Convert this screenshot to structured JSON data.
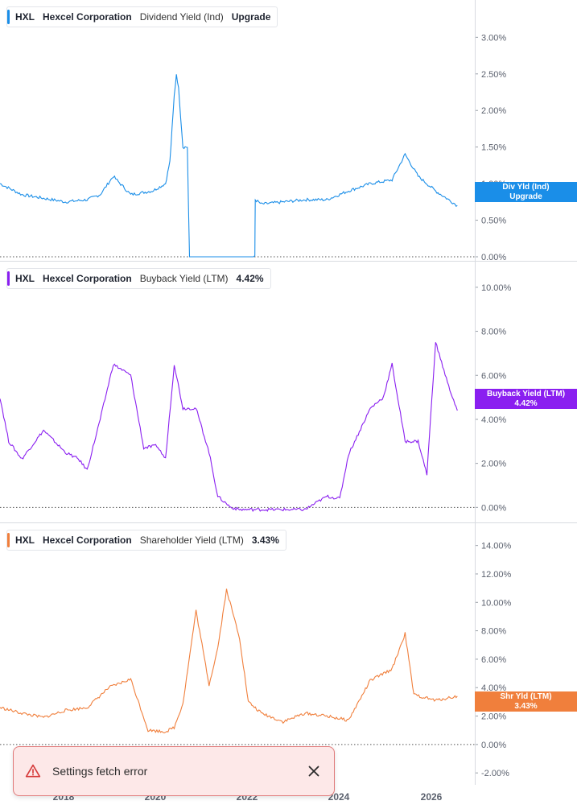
{
  "ticker": "HXL",
  "company": "Hexcel Corporation",
  "panels": [
    {
      "metric": "Dividend Yield (Ind)",
      "legend_value": "Upgrade",
      "color": "#1a8ee8",
      "tag_line1": "Div Yld (Ind)",
      "tag_line2": "Upgrade",
      "axis_ticks": [
        "3.00%",
        "2.50%",
        "2.00%",
        "1.50%",
        "1.00%",
        "0.50%",
        "0.00%"
      ]
    },
    {
      "metric": "Buyback Yield (LTM)",
      "legend_value": "4.42%",
      "color": "#8a1ff0",
      "tag_line1": "Buyback Yield (LTM)",
      "tag_line2": "4.42%",
      "axis_ticks": [
        "10.00%",
        "8.00%",
        "6.00%",
        "4.00%",
        "2.00%",
        "0.00%"
      ]
    },
    {
      "metric": "Shareholder Yield (LTM)",
      "legend_value": "3.43%",
      "color": "#f07f3c",
      "tag_line1": "Shr Yld (LTM)",
      "tag_line2": "3.43%",
      "axis_ticks": [
        "14.00%",
        "12.00%",
        "10.00%",
        "8.00%",
        "6.00%",
        "4.00%",
        "2.00%",
        "0.00%",
        "-2.00%"
      ]
    }
  ],
  "x_axis": [
    "2018",
    "2020",
    "2022",
    "2024",
    "2026"
  ],
  "toast": {
    "message": "Settings fetch error"
  },
  "chart_data": [
    {
      "type": "line",
      "title": "",
      "series": [
        {
          "name": "Dividend Yield (Ind)",
          "x": [
            2016.0,
            2016.5,
            2017.0,
            2017.5,
            2018.0,
            2018.3,
            2018.6,
            2019.0,
            2019.5,
            2019.8,
            2019.9,
            2020.0,
            2020.05,
            2020.1,
            2020.2,
            2020.3,
            2020.35,
            2021.0,
            2021.5,
            2021.85,
            2021.86,
            2022.0,
            2022.5,
            2023.0,
            2023.5,
            2024.0,
            2024.5,
            2025.0,
            2025.3,
            2025.6,
            2026.0,
            2026.5
          ],
          "values": [
            1.0,
            0.85,
            0.8,
            0.75,
            0.78,
            0.85,
            1.1,
            0.85,
            0.9,
            1.0,
            1.3,
            2.2,
            2.5,
            2.3,
            1.5,
            1.5,
            0.0,
            0.0,
            0.0,
            0.0,
            0.78,
            0.72,
            0.75,
            0.78,
            0.78,
            0.9,
            1.0,
            1.05,
            1.4,
            1.1,
            0.9,
            0.7
          ]
        }
      ],
      "ylim": [
        0,
        3.4
      ]
    },
    {
      "type": "line",
      "title": "",
      "series": [
        {
          "name": "Buyback Yield (LTM)",
          "x": [
            2016.0,
            2016.2,
            2016.5,
            2017.0,
            2017.5,
            2017.8,
            2018.0,
            2018.3,
            2018.6,
            2019.0,
            2019.3,
            2019.6,
            2019.8,
            2020.0,
            2020.2,
            2020.5,
            2020.8,
            2021.0,
            2021.3,
            2021.5,
            2022.0,
            2022.5,
            2023.0,
            2023.5,
            2023.8,
            2024.0,
            2024.5,
            2024.8,
            2025.0,
            2025.3,
            2025.6,
            2025.8,
            2026.0,
            2026.3,
            2026.5
          ],
          "values": [
            5.0,
            3.0,
            2.2,
            3.5,
            2.5,
            2.2,
            1.7,
            4.0,
            6.5,
            6.0,
            2.7,
            2.8,
            2.2,
            6.5,
            4.5,
            4.5,
            2.5,
            0.5,
            0.0,
            -0.1,
            -0.1,
            -0.1,
            -0.1,
            0.5,
            0.4,
            2.4,
            4.5,
            5.0,
            6.5,
            3.0,
            3.0,
            1.5,
            7.5,
            5.5,
            4.4
          ]
        }
      ],
      "ylim": [
        -0.5,
        10.8
      ]
    },
    {
      "type": "line",
      "title": "",
      "series": [
        {
          "name": "Shareholder Yield (LTM)",
          "x": [
            2016.0,
            2016.5,
            2017.0,
            2017.5,
            2018.0,
            2018.5,
            2019.0,
            2019.4,
            2019.8,
            2020.0,
            2020.2,
            2020.5,
            2020.8,
            2021.0,
            2021.2,
            2021.5,
            2021.7,
            2022.0,
            2022.5,
            2023.0,
            2023.5,
            2024.0,
            2024.5,
            2025.0,
            2025.3,
            2025.5,
            2026.0,
            2026.5
          ],
          "values": [
            2.6,
            2.2,
            1.9,
            2.4,
            2.6,
            4.0,
            4.6,
            1.0,
            0.9,
            1.2,
            2.9,
            9.4,
            4.2,
            6.8,
            10.9,
            7.5,
            3.0,
            2.2,
            1.6,
            2.2,
            2.0,
            1.7,
            4.5,
            5.3,
            7.8,
            3.5,
            3.1,
            3.4
          ]
        }
      ],
      "ylim": [
        -2.5,
        15.0
      ]
    }
  ]
}
